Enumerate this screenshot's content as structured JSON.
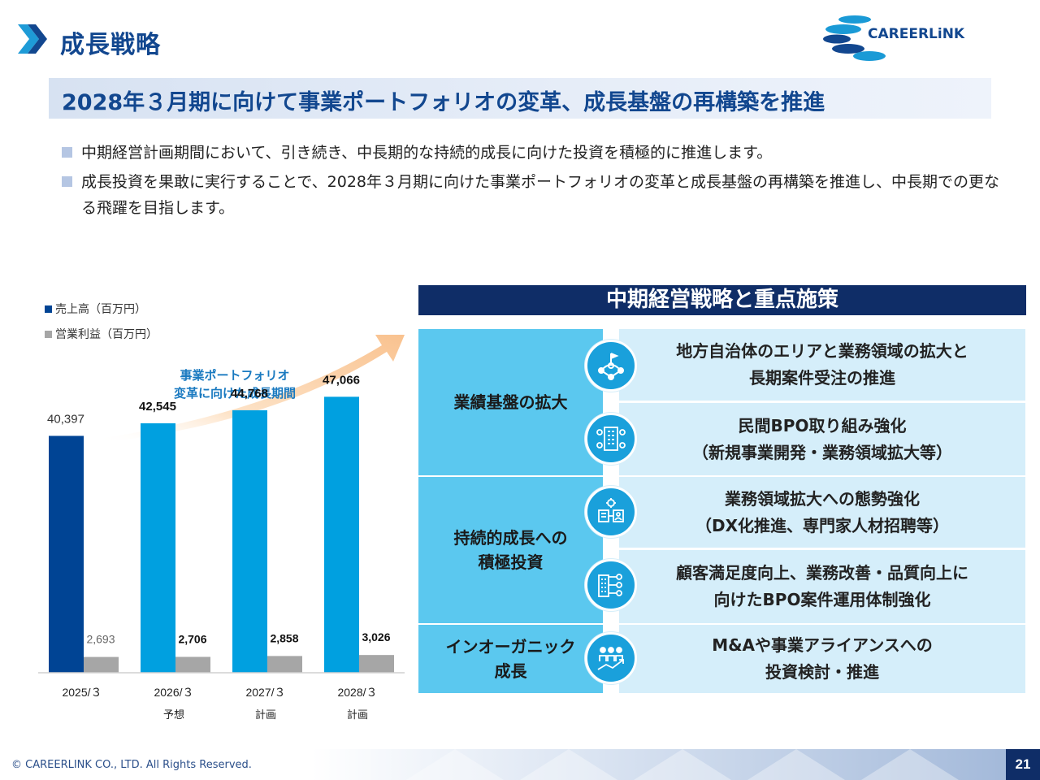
{
  "header": {
    "title": "成長戦略",
    "logo_text": "CAREERLiNK",
    "subtitle": "2028年３月期に向けて事業ポートフォリオの変革、成長基盤の再構築を推進"
  },
  "bullets": [
    "中期経営計画期間において、引き続き、中長期的な持続的成長に向けた投資を積極的に推進します。",
    "成長投資を果敢に実行することで、2028年３月期に向けた事業ポートフォリオの変革と成長基盤の再構築を推進し、中長期での更なる飛躍を目指します。"
  ],
  "legend": {
    "sales": "売上高（百万円）",
    "profit": "営業利益（百万円）"
  },
  "arrow_label": "事業ポートフォリオ\n変革に向けた成長期間",
  "chart_data": {
    "type": "bar",
    "categories": [
      "2025/３",
      "2026/３",
      "2027/３",
      "2028/３"
    ],
    "sublabels": [
      "",
      "予想",
      "計画",
      "計画"
    ],
    "series": [
      {
        "name": "売上高（百万円）",
        "values": [
          40397,
          42545,
          44768,
          47066
        ],
        "labels": [
          "40,397",
          "42,545",
          "44,768",
          "47,066"
        ],
        "colors": [
          "#004494",
          "#00a0e0",
          "#00a0e0",
          "#00a0e0"
        ]
      },
      {
        "name": "営業利益（百万円）",
        "values": [
          2693,
          2706,
          2858,
          3026
        ],
        "labels": [
          "2,693",
          "2,706",
          "2,858",
          "3,026"
        ],
        "color": "#a6a6a6"
      }
    ],
    "ylim": [
      0,
      60000
    ]
  },
  "strategy": {
    "header": "中期経営戦略と重点施策",
    "categories": [
      {
        "label": "業績基盤の拡大"
      },
      {
        "label": "持続的成長への\n積極投資"
      },
      {
        "label": "インオーガニック\n成長"
      }
    ],
    "items": [
      {
        "text": "地方自治体のエリアと業務領域の拡大と\n長期案件受注の推進",
        "icon": "network-icon"
      },
      {
        "text": "民間BPO取り組み強化\n（新規事業開発・業務領域拡大等）",
        "icon": "buildings-people-icon"
      },
      {
        "text": "業務領域拡大への態勢強化\n（DX化推進、専門家人材招聘等）",
        "icon": "digital-transformation-icon"
      },
      {
        "text": "顧客満足度向上、業務改善・品質向上に\n向けたBPO案件運用体制強化",
        "icon": "building-team-icon"
      },
      {
        "text": "M&Aや事業アライアンスへの\n投資検討・推進",
        "icon": "growth-team-icon"
      }
    ]
  },
  "footer": {
    "copyright": "© CAREERLINK CO., LTD. All Rights Reserved.",
    "page_number": "21"
  },
  "colors": {
    "navy": "#0f2d67",
    "title_blue": "#12478f",
    "category_cyan": "#5bc8ef",
    "item_light": "#d5eefa",
    "icon_blue": "#1aa0db"
  }
}
